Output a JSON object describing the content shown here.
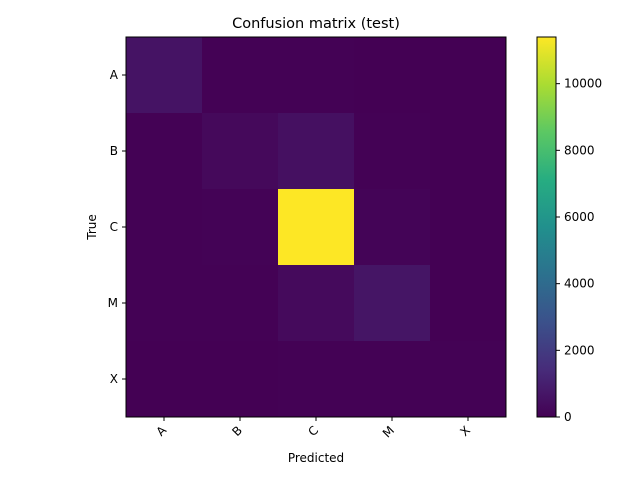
{
  "chart_data": {
    "type": "heatmap",
    "title": "Confusion matrix (test)",
    "xlabel": "Predicted",
    "ylabel": "True",
    "x_categories": [
      "A",
      "B",
      "C",
      "M",
      "X"
    ],
    "y_categories": [
      "A",
      "B",
      "C",
      "M",
      "X"
    ],
    "values": [
      [
        600,
        40,
        20,
        10,
        0
      ],
      [
        30,
        250,
        500,
        30,
        0
      ],
      [
        40,
        60,
        11400,
        100,
        5
      ],
      [
        20,
        40,
        300,
        650,
        10
      ],
      [
        5,
        5,
        20,
        30,
        20
      ]
    ],
    "colormap": "viridis",
    "colorbar": {
      "min": 0,
      "max": 11400,
      "ticks": [
        0,
        2000,
        4000,
        6000,
        8000,
        10000
      ]
    },
    "grid": false
  }
}
